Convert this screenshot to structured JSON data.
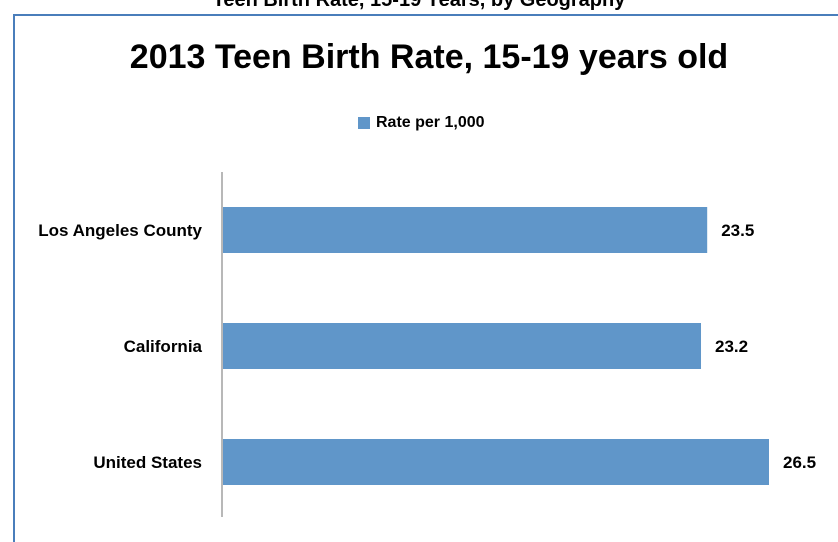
{
  "page": {
    "cutoff_heading": ", , , , , , , , , y , , , , , , , y , , , , , , , , , , , , , , , , , , , , , , , , , , , , , , , , , , , , , , , , , , , , , , , , , , y , , , g , , p , , , , , y , , , , , ,"
  },
  "chart_data": {
    "type": "bar",
    "orientation": "horizontal",
    "title": "2013 Teen Birth Rate, 15-19 years old",
    "categories": [
      "Los Angeles County",
      "California",
      "United States"
    ],
    "series": [
      {
        "name": "Rate per 1,000",
        "values": [
          23.5,
          23.2,
          26.5
        ],
        "color": "#6096c9"
      }
    ],
    "data_labels": [
      "23.5",
      "23.2",
      "26.5"
    ],
    "xlim": [
      0,
      28
    ],
    "legend_position": "top",
    "grid": false,
    "frame_color": "#4a7ebb"
  }
}
